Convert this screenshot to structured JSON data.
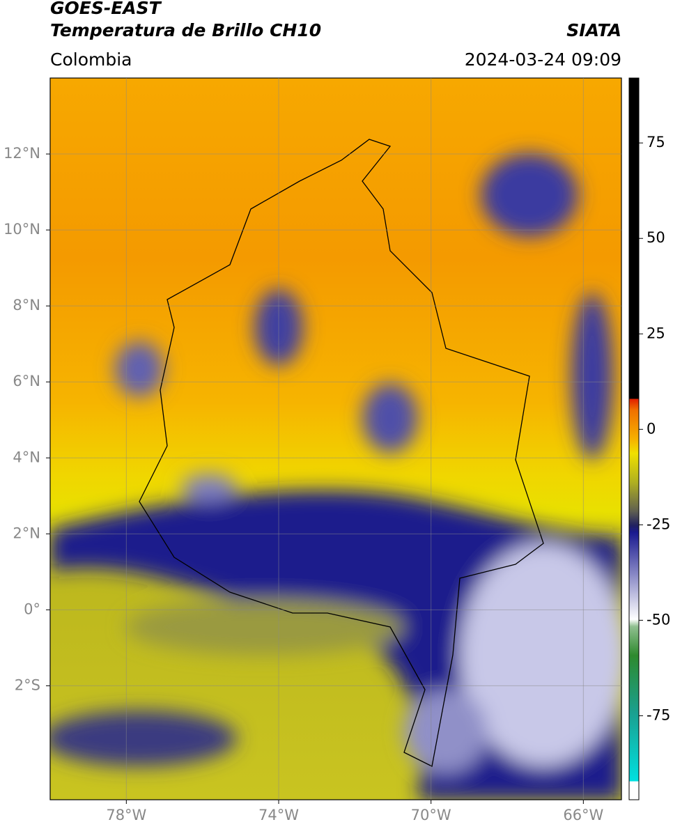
{
  "header": {
    "title": "GOES-EAST",
    "subtitle": "Temperatura de Brillo CH10",
    "source": "SIATA",
    "region": "Colombia",
    "timestamp": "2024-03-24 09:09"
  },
  "map": {
    "lon_range": [
      -80,
      -65
    ],
    "lat_range": [
      -5,
      14
    ],
    "grid": true,
    "lon_ticks": [
      {
        "value": -78,
        "label": "78°W"
      },
      {
        "value": -74,
        "label": "74°W"
      },
      {
        "value": -70,
        "label": "70°W"
      },
      {
        "value": -66,
        "label": "66°W"
      }
    ],
    "lat_ticks": [
      {
        "value": 12,
        "label": "12°N"
      },
      {
        "value": 10,
        "label": "10°N"
      },
      {
        "value": 8,
        "label": "8°N"
      },
      {
        "value": 6,
        "label": "6°N"
      },
      {
        "value": 4,
        "label": "4°N"
      },
      {
        "value": 2,
        "label": "2°N"
      },
      {
        "value": 0,
        "label": "0°"
      },
      {
        "value": -2,
        "label": "2°S"
      }
    ]
  },
  "colorbar": {
    "range": [
      -97,
      92
    ],
    "ticks": [
      75,
      50,
      25,
      0,
      -25,
      -50,
      -75
    ]
  }
}
